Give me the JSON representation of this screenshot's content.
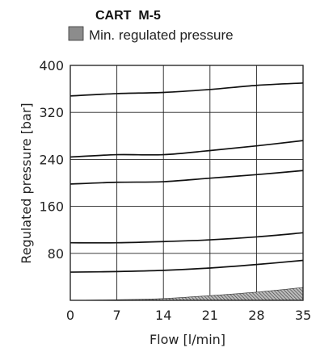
{
  "chart_data": {
    "type": "line",
    "title": "CART  M-5",
    "legend": [
      {
        "label": "Min. regulated pressure",
        "color": "#8c8c8c"
      }
    ],
    "xlabel": "Flow [l/min]",
    "ylabel": "Regulated pressure [bar]",
    "xlim": [
      0,
      35
    ],
    "ylim": [
      0,
      400
    ],
    "x_ticks": [
      "0",
      "7",
      "14",
      "21",
      "28",
      "35"
    ],
    "y_ticks": [
      "80",
      "160",
      "240",
      "320",
      "400"
    ],
    "grid": true,
    "x": [
      0,
      7,
      14,
      21,
      28,
      35
    ],
    "series": [
      {
        "values": [
          48,
          49,
          51,
          55,
          61,
          68
        ]
      },
      {
        "values": [
          98,
          98,
          100,
          103,
          108,
          115
        ]
      },
      {
        "values": [
          198,
          201,
          202,
          208,
          214,
          221
        ]
      },
      {
        "values": [
          244,
          248,
          248,
          255,
          263,
          272
        ]
      },
      {
        "values": [
          348,
          352,
          354,
          359,
          366,
          370
        ]
      }
    ],
    "min_regulated_pressure": [
      0,
      1,
      3,
      8,
      14,
      22
    ]
  }
}
